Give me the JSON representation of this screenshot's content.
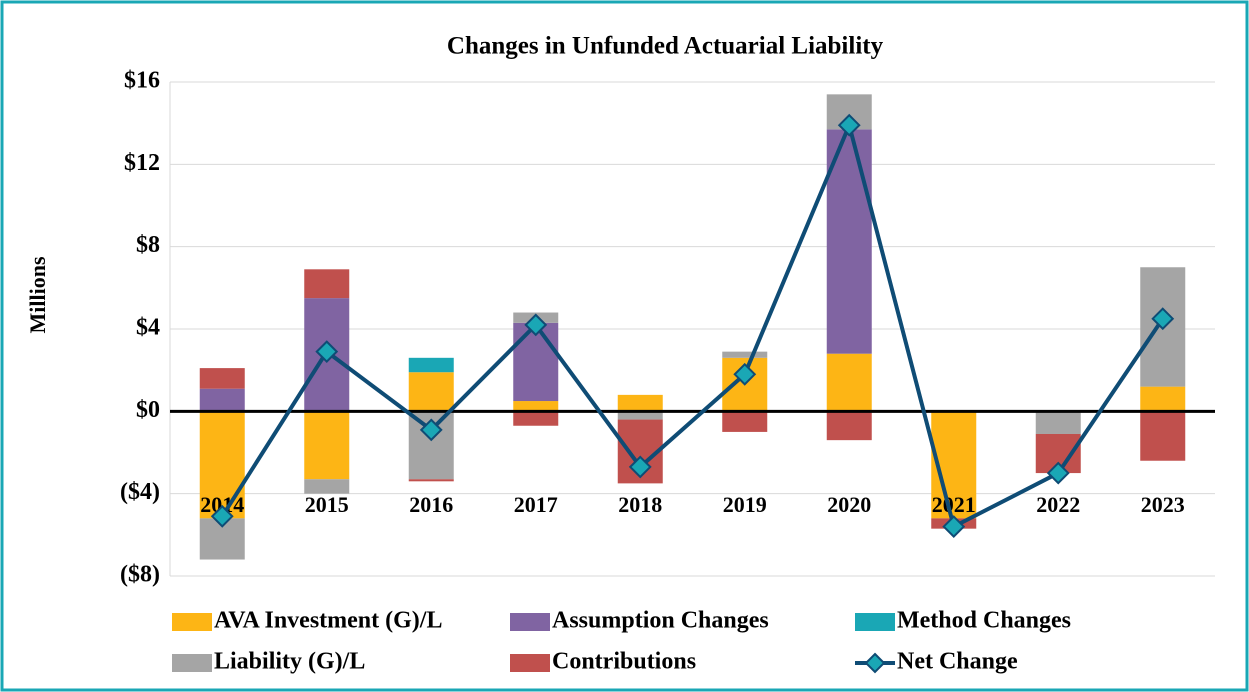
{
  "chart_data": {
    "type": "bar-line",
    "title": "Changes in Unfunded Actuarial Liability",
    "y_axis_label": "Millions",
    "categories": [
      "2014",
      "2015",
      "2016",
      "2017",
      "2018",
      "2019",
      "2020",
      "2021",
      "2022",
      "2023"
    ],
    "series": [
      {
        "name": "AVA Investment (G)/L",
        "type": "bar",
        "color": "#FDB515",
        "values": [
          -5.2,
          -3.3,
          1.9,
          0.5,
          0.8,
          2.6,
          2.8,
          -5.2,
          null,
          1.2
        ]
      },
      {
        "name": "Assumption Changes",
        "type": "bar",
        "color": "#8064A2",
        "values": [
          1.1,
          5.5,
          null,
          3.8,
          null,
          null,
          10.9,
          null,
          null,
          null
        ]
      },
      {
        "name": "Method Changes",
        "type": "bar",
        "color": "#1AA7B5",
        "values": [
          null,
          null,
          0.7,
          null,
          null,
          null,
          null,
          null,
          null,
          null
        ]
      },
      {
        "name": "Liability (G)/L",
        "type": "bar",
        "color": "#A5A5A5",
        "values": [
          -2.0,
          -0.7,
          -3.3,
          0.5,
          -0.4,
          0.3,
          1.7,
          null,
          -1.1,
          5.8
        ]
      },
      {
        "name": "Contributions",
        "type": "bar",
        "color": "#C0504D",
        "values": [
          1.0,
          1.4,
          -0.1,
          -0.7,
          -3.1,
          -1.0,
          -1.4,
          -0.5,
          -1.9,
          -2.4
        ]
      },
      {
        "name": "Net Change",
        "type": "line",
        "color": "#0F4C75",
        "marker_color": "#1AA7B5",
        "values": [
          -5.1,
          2.9,
          -0.9,
          4.2,
          -2.7,
          1.8,
          13.9,
          -5.6,
          -3.0,
          4.5
        ]
      }
    ],
    "ylim": [
      -8,
      16
    ],
    "yticks": [
      {
        "value": -8,
        "label": "($8)"
      },
      {
        "value": -4,
        "label": "($4)"
      },
      {
        "value": 0,
        "label": "$0"
      },
      {
        "value": 4,
        "label": "$4"
      },
      {
        "value": 8,
        "label": "$8"
      },
      {
        "value": 12,
        "label": "$12"
      },
      {
        "value": 16,
        "label": "$16"
      }
    ],
    "grid": true
  }
}
